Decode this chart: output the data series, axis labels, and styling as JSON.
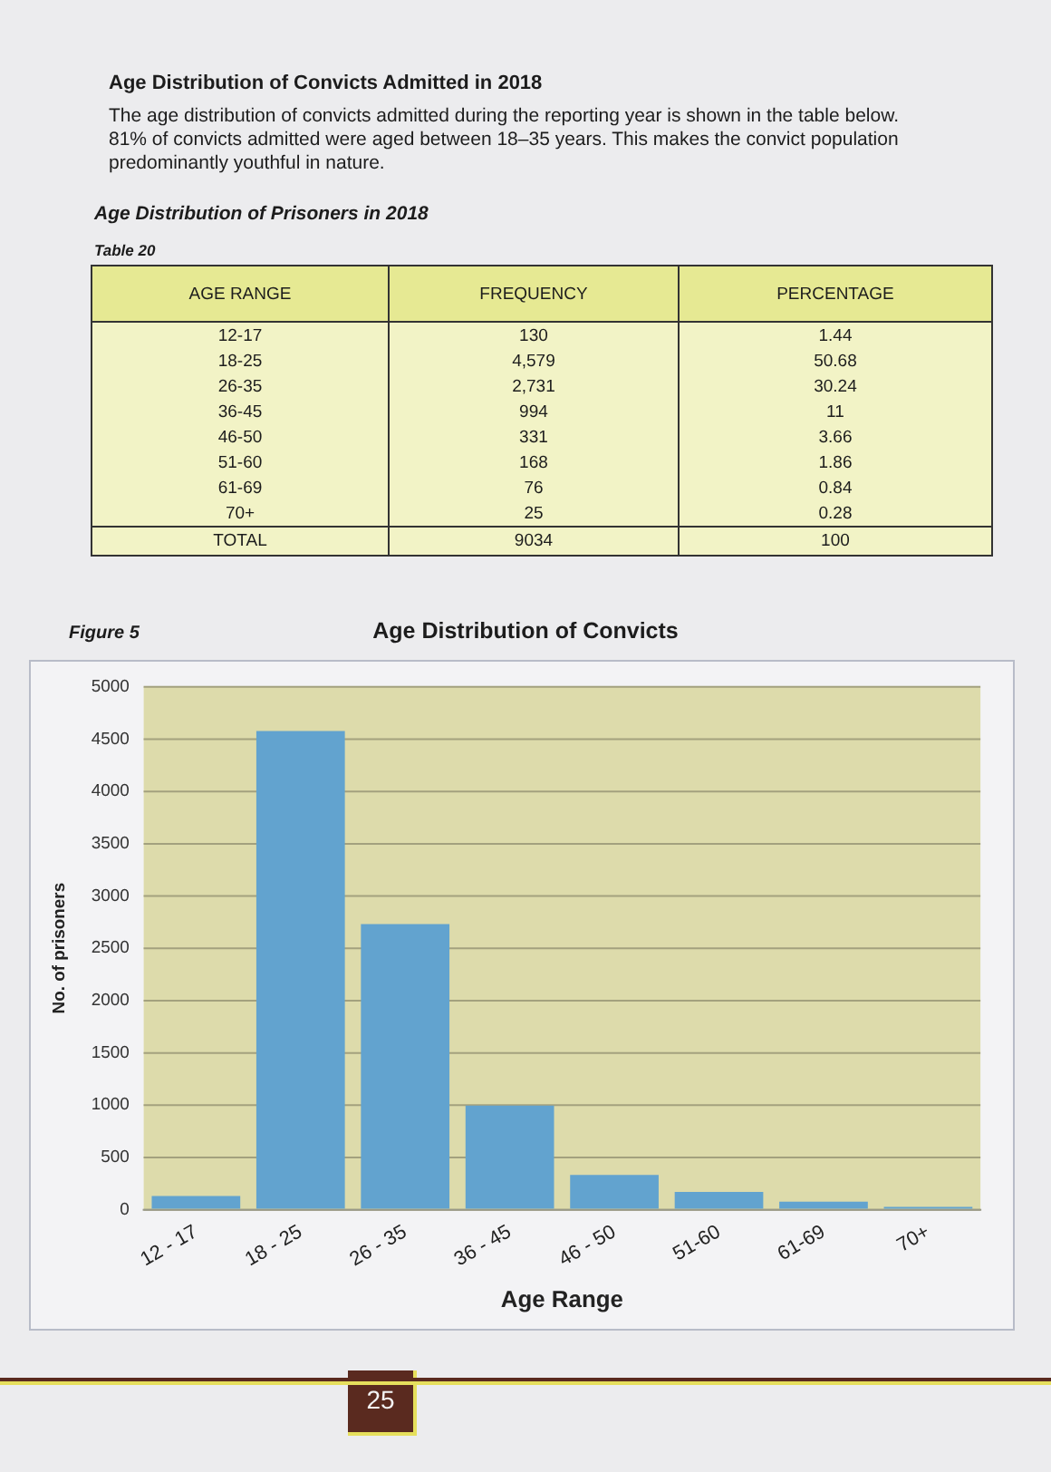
{
  "chart_data": [
    {
      "type": "other",
      "title": "Age Distribution of Convicts Admitted in 2018",
      "annotations": [
        "The age distribution of convicts admitted during the reporting year is shown in the table below. 81% of convicts admitted were aged between 18–35 years. This makes the convict population predominantly youthful in nature."
      ]
    },
    {
      "type": "other",
      "title": "Age Distribution of Prisoners in 2018",
      "annotations": [
        "Table 20"
      ],
      "xlabel": "AGE RANGE",
      "categories": [
        "12-17",
        "18-25",
        "26-35",
        "36-45",
        "46-50",
        "51-60",
        "61-69",
        "70+",
        "TOTAL"
      ],
      "series": [
        {
          "name": "FREQUENCY",
          "values": [
            130,
            4579,
            2731,
            994,
            331,
            168,
            76,
            25,
            9034
          ],
          "value_labels": [
            "130",
            "4,579",
            "2,731",
            "994",
            "331",
            "168",
            "76",
            "25",
            "9034"
          ]
        },
        {
          "name": "PERCENTAGE",
          "values": [
            1.44,
            50.68,
            30.24,
            11,
            3.66,
            1.86,
            0.84,
            0.28,
            100
          ],
          "value_labels": [
            "1.44",
            "50.68",
            "30.24",
            "11",
            "3.66",
            "1.86",
            "0.84",
            "0.28",
            "100"
          ]
        }
      ]
    },
    {
      "type": "bar",
      "title": "Age Distribution of Convicts",
      "annotations": [
        "Figure 5",
        "25"
      ],
      "xlabel": "Age Range",
      "ylabel": "No. of prisoners",
      "categories": [
        "12 - 17",
        "18 - 25",
        "26 - 35",
        "36 - 45",
        "46 - 50",
        "51-60",
        "61-69",
        "70+"
      ],
      "values": [
        130,
        4579,
        2731,
        994,
        331,
        168,
        76,
        25
      ],
      "color": "#62a3cf",
      "ylim": [
        0,
        5000
      ],
      "yticks": [
        0,
        500,
        1000,
        1500,
        2000,
        2500,
        3000,
        3500,
        4000,
        4500,
        5000
      ],
      "grid": "y"
    }
  ]
}
